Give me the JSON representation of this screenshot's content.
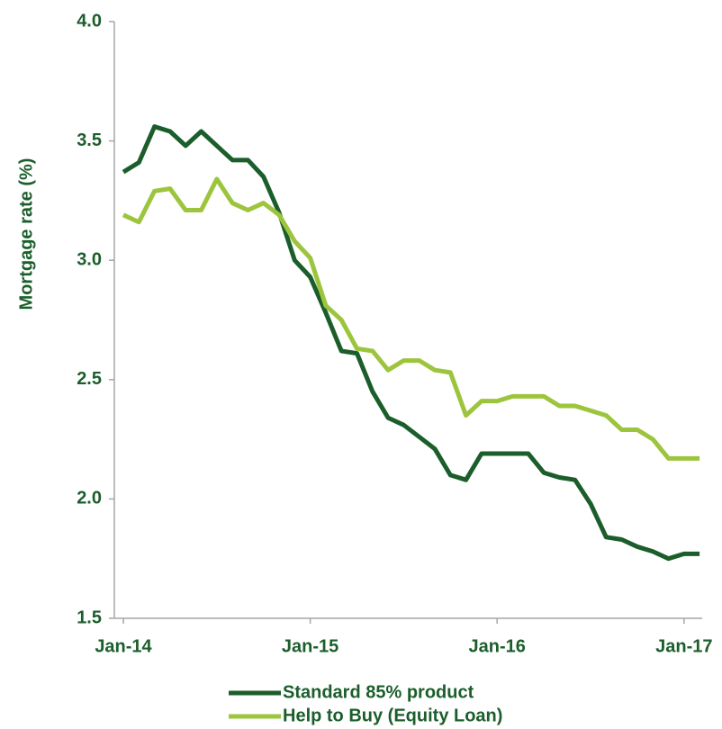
{
  "chart_data": {
    "type": "line",
    "y_label": "Mortgage rate (%)",
    "categories": [
      "Jan-14",
      null,
      null,
      null,
      null,
      null,
      null,
      null,
      null,
      null,
      null,
      null,
      "Jan-15",
      null,
      null,
      null,
      null,
      null,
      null,
      null,
      null,
      null,
      null,
      null,
      "Jan-16",
      null,
      null,
      null,
      null,
      null,
      null,
      null,
      null,
      null,
      null,
      null,
      "Jan-17",
      null
    ],
    "series": [
      {
        "name": "Standard 85% product",
        "color": "#1b5e2b",
        "values": [
          3.37,
          3.41,
          3.56,
          3.54,
          3.48,
          3.54,
          3.48,
          3.42,
          3.42,
          3.35,
          3.2,
          3.0,
          2.93,
          2.78,
          2.62,
          2.61,
          2.45,
          2.34,
          2.31,
          2.26,
          2.21,
          2.1,
          2.08,
          2.19,
          2.19,
          2.19,
          2.19,
          2.11,
          2.09,
          2.08,
          1.98,
          1.84,
          1.83,
          1.8,
          1.78,
          1.75,
          1.77,
          1.77
        ]
      },
      {
        "name": "Help to Buy (Equity Loan)",
        "color": "#9cc53d",
        "values": [
          3.19,
          3.16,
          3.29,
          3.3,
          3.21,
          3.21,
          3.34,
          3.24,
          3.21,
          3.24,
          3.19,
          3.08,
          3.01,
          2.81,
          2.75,
          2.63,
          2.62,
          2.54,
          2.58,
          2.58,
          2.54,
          2.53,
          2.35,
          2.41,
          2.41,
          2.43,
          2.43,
          2.43,
          2.39,
          2.39,
          2.37,
          2.35,
          2.29,
          2.29,
          2.25,
          2.17,
          2.17,
          2.17
        ]
      }
    ],
    "ylim": [
      1.5,
      4.0
    ],
    "yticks": [
      {
        "value": 1.5,
        "label": "1.5"
      },
      {
        "value": 2.0,
        "label": "2.0"
      },
      {
        "value": 2.5,
        "label": "2.5"
      },
      {
        "value": 3.0,
        "label": "3.0"
      },
      {
        "value": 3.5,
        "label": "3.5"
      },
      {
        "value": 4.0,
        "label": "4.0"
      }
    ],
    "legend": "bottom"
  }
}
